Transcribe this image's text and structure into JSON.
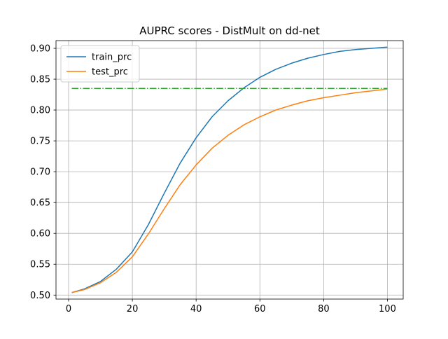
{
  "chart_data": {
    "type": "line",
    "title": "AUPRC scores - DistMult on dd-net",
    "xlabel": "",
    "ylabel": "",
    "xlim": [
      -3.95,
      104.95
    ],
    "ylim": [
      0.4935,
      0.9125
    ],
    "xticks": [
      0,
      20,
      40,
      60,
      80,
      100
    ],
    "xtick_labels": [
      "0",
      "20",
      "40",
      "60",
      "80",
      "100"
    ],
    "yticks": [
      0.5,
      0.55,
      0.6,
      0.65,
      0.7,
      0.75,
      0.8,
      0.85,
      0.9
    ],
    "ytick_labels": [
      "0.50",
      "0.55",
      "0.60",
      "0.65",
      "0.70",
      "0.75",
      "0.80",
      "0.85",
      "0.90"
    ],
    "grid": true,
    "legend_position": "upper-left",
    "series": [
      {
        "name": "train_prc",
        "color": "#1f77b4",
        "style": "solid",
        "x": [
          1,
          5,
          10,
          15,
          20,
          25,
          30,
          35,
          40,
          45,
          50,
          55,
          60,
          65,
          70,
          75,
          80,
          85,
          90,
          95,
          100
        ],
        "y": [
          0.504,
          0.51,
          0.522,
          0.542,
          0.57,
          0.614,
          0.665,
          0.714,
          0.755,
          0.789,
          0.815,
          0.836,
          0.853,
          0.866,
          0.876,
          0.884,
          0.89,
          0.895,
          0.898,
          0.9,
          0.902
        ]
      },
      {
        "name": "test_prc",
        "color": "#ff7f0e",
        "style": "solid",
        "x": [
          1,
          5,
          10,
          15,
          20,
          25,
          30,
          35,
          40,
          45,
          50,
          55,
          60,
          65,
          70,
          75,
          80,
          85,
          90,
          95,
          100
        ],
        "y": [
          0.504,
          0.509,
          0.52,
          0.537,
          0.562,
          0.599,
          0.64,
          0.679,
          0.711,
          0.738,
          0.759,
          0.776,
          0.789,
          0.8,
          0.808,
          0.815,
          0.82,
          0.824,
          0.828,
          0.831,
          0.834
        ]
      },
      {
        "color": "#2ca02c",
        "style": "dashdot",
        "x": [
          1,
          100
        ],
        "y": [
          0.835,
          0.835
        ]
      }
    ]
  }
}
